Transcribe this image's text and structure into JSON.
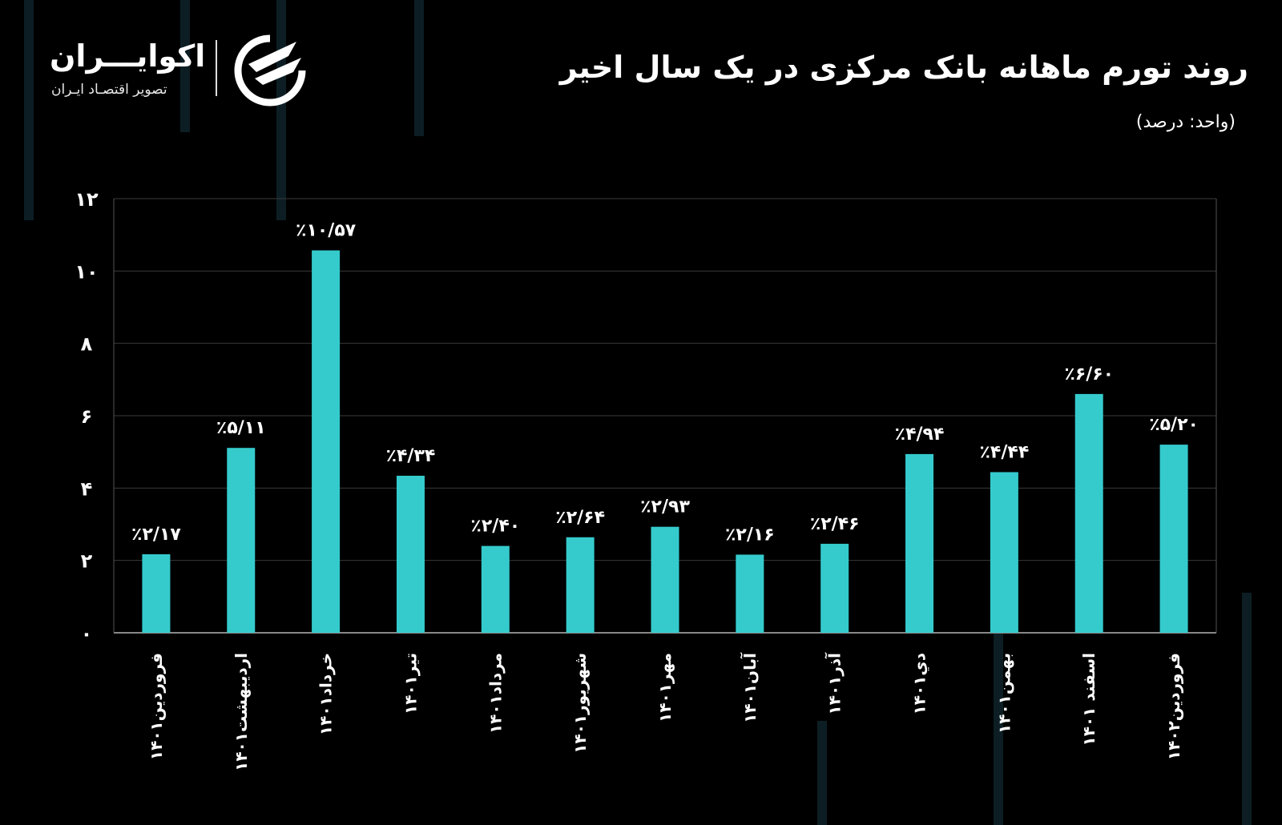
{
  "header": {
    "title": "روند تورم ماهانه بانک مرکزی در یک سال اخیر",
    "unit": "(واحد: درصد)"
  },
  "logo": {
    "name": "اکوایـــران",
    "tagline": "تصویر اقتصـاد ایـران"
  },
  "colors": {
    "bar": "#35cbcd",
    "background": "#000000",
    "grid": "#3a3a3a",
    "text": "#ffffff"
  },
  "chart_data": {
    "type": "bar",
    "title": "روند تورم ماهانه بانک مرکزی در یک سال اخیر",
    "ylabel": "(واحد: درصد)",
    "xlabel": "",
    "ylim": [
      0,
      12
    ],
    "grid": true,
    "yticks": [
      0,
      2,
      4,
      6,
      8,
      10,
      12
    ],
    "ytick_labels": [
      "۰",
      "۲",
      "۴",
      "۶",
      "۸",
      "۱۰",
      "۱۲"
    ],
    "categories": [
      "فروردین۱۴۰۱",
      "اردیبهشت۱۴۰۱",
      "خرداد۱۴۰۱",
      "تیر۱۴۰۱",
      "مرداد۱۴۰۱",
      "شهریور۱۴۰۱",
      "مهر۱۴۰۱",
      "آبان۱۴۰۱",
      "آذر۱۴۰۱",
      "دي۱۴۰۱",
      "بهمن۱۴۰۱",
      "اسفند ۱۴۰۱",
      "فروردین۱۴۰۲"
    ],
    "values": [
      2.17,
      5.11,
      10.57,
      4.34,
      2.4,
      2.64,
      2.93,
      2.16,
      2.46,
      4.94,
      4.44,
      6.6,
      5.2
    ],
    "data_labels": [
      "٪۲/۱۷",
      "٪۵/۱۱",
      "٪۱۰/۵۷",
      "٪۴/۳۴",
      "٪۲/۴۰",
      "٪۲/۶۴",
      "٪۲/۹۳",
      "٪۲/۱۶",
      "٪۲/۴۶",
      "٪۴/۹۴",
      "٪۴/۴۴",
      "٪۶/۶۰",
      "٪۵/۲۰"
    ]
  }
}
